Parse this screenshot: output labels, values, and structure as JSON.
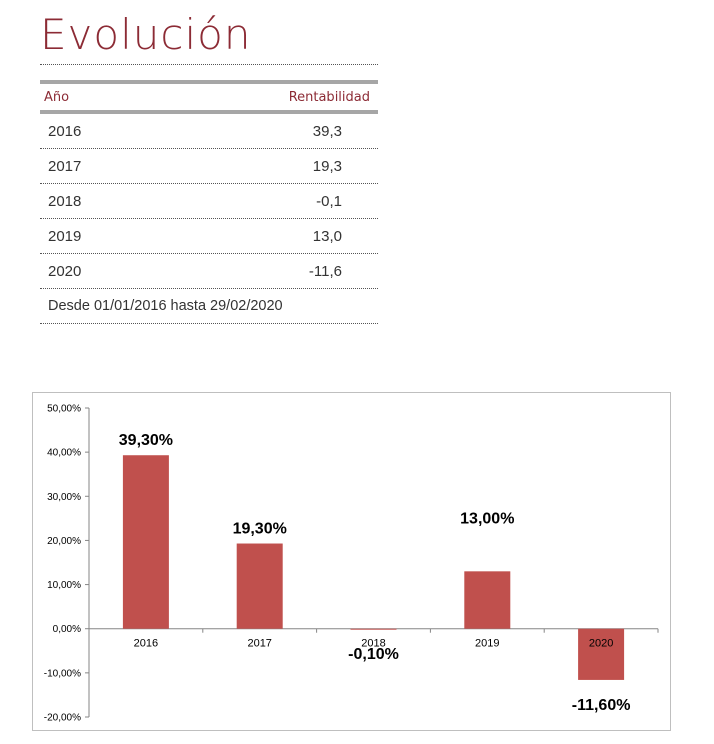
{
  "title": "Evolución",
  "table": {
    "header": {
      "year": "Año",
      "return": "Rentabilidad"
    },
    "rows": [
      {
        "year": "2016",
        "value": "39,3"
      },
      {
        "year": "2017",
        "value": "19,3"
      },
      {
        "year": "2018",
        "value": "-0,1"
      },
      {
        "year": "2019",
        "value": "13,0"
      },
      {
        "year": "2020",
        "value": "-11,6"
      }
    ],
    "footnote": "Desde 01/01/2016 hasta 29/02/2020"
  },
  "colors": {
    "accent": "#8c2b35",
    "bar": "#c0504d"
  },
  "chart_data": {
    "type": "bar",
    "categories": [
      "2016",
      "2017",
      "2018",
      "2019",
      "2020"
    ],
    "values": [
      39.3,
      19.3,
      -0.1,
      13.0,
      -11.6
    ],
    "data_labels": [
      "39,30%",
      "19,30%",
      "-0,10%",
      "13,00%",
      "-11,60%"
    ],
    "y_ticks": [
      50,
      40,
      30,
      20,
      10,
      0,
      -10,
      -20
    ],
    "y_tick_labels": [
      "50,00%",
      "40,00%",
      "30,00%",
      "20,00%",
      "10,00%",
      "0,00%",
      "-10,00%",
      "-20,00%"
    ],
    "ylim": [
      -20,
      50
    ],
    "grid": false,
    "legend": "none"
  }
}
